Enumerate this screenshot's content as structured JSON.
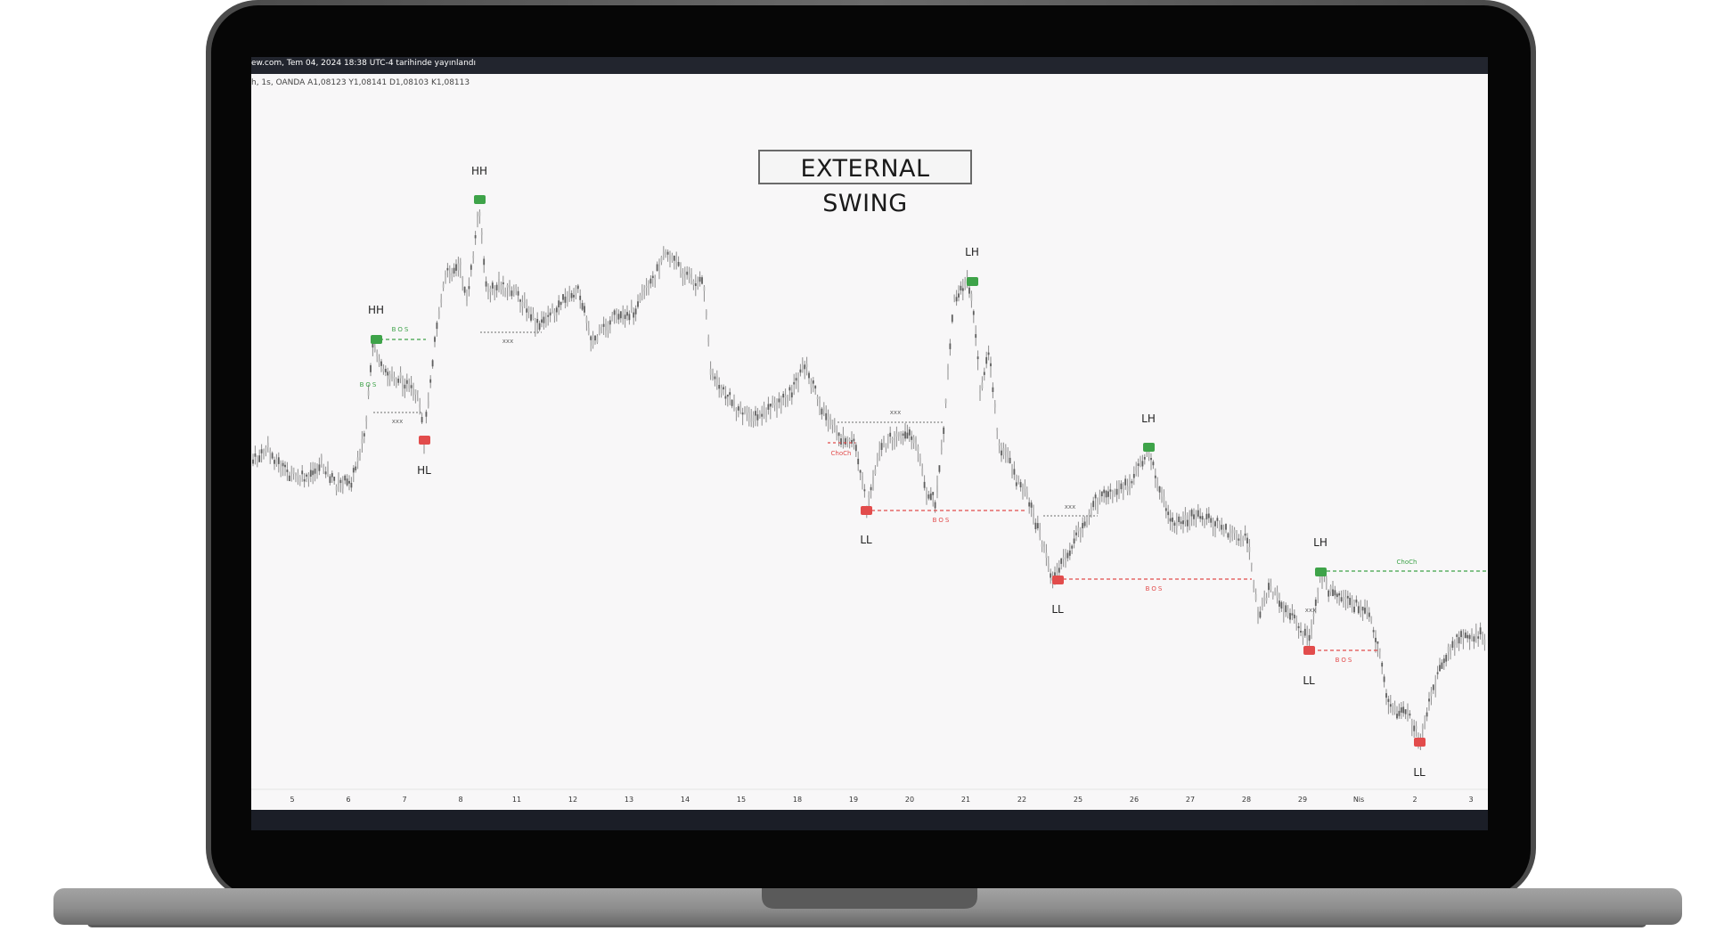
{
  "header": {
    "watermark": "ew.com, Tem 04, 2024 18:38 UTC-4 tarihinde yayınlandı",
    "legend": "h, 1s, OANDA A1,08123 Y1,08141 D1,08103 K1,08113"
  },
  "chart_title": "EXTERNAL SWING",
  "colors": {
    "bullish": "#3ea349",
    "bearish": "#e24c4c",
    "candle": "#9a9a9a",
    "chart_bg": "#f8f7f8",
    "frame": "#131313"
  },
  "swing_labels": [
    {
      "text": "HH",
      "color": "green"
    },
    {
      "text": "HL",
      "color": "red"
    },
    {
      "text": "HH",
      "color": "green"
    },
    {
      "text": "LH",
      "color": "green"
    },
    {
      "text": "LL",
      "color": "red"
    },
    {
      "text": "LL",
      "color": "red"
    },
    {
      "text": "LH",
      "color": "green"
    },
    {
      "text": "LH",
      "color": "green"
    },
    {
      "text": "LL",
      "color": "red"
    },
    {
      "text": "LL",
      "color": "red"
    }
  ],
  "structure_labels": [
    "BOS",
    "BOS",
    "xxx",
    "xxx",
    "xxx",
    "ChoCh",
    "BOS",
    "xxx",
    "BOS",
    "xxx",
    "BOS",
    "ChoCh"
  ],
  "x_axis_ticks": [
    "5",
    "6",
    "7",
    "8",
    "11",
    "12",
    "13",
    "14",
    "15",
    "18",
    "19",
    "20",
    "21",
    "22",
    "25",
    "26",
    "27",
    "28",
    "29",
    "Nis",
    "2",
    "3"
  ]
}
